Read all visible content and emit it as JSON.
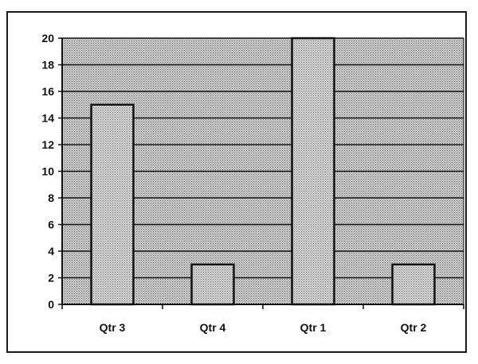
{
  "chart_data": {
    "type": "bar",
    "categories": [
      "Qtr 3",
      "Qtr 4",
      "Qtr 1",
      "Qtr 2"
    ],
    "values": [
      15,
      3,
      20,
      3
    ],
    "title": "",
    "xlabel": "",
    "ylabel": "",
    "ylim": [
      0,
      20
    ],
    "yticks": [
      0,
      2,
      4,
      6,
      8,
      10,
      12,
      14,
      16,
      18,
      20
    ],
    "grid": true,
    "legend": "none",
    "colors": {
      "plot_fill": "#c2c2c2",
      "bar_fill": "#cfcfcf",
      "ink": "#111111"
    }
  }
}
